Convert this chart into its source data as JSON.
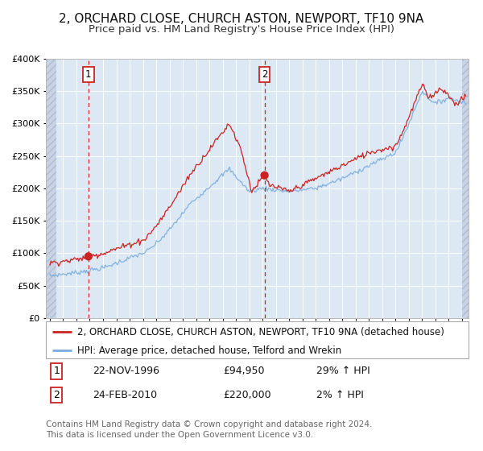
{
  "title1": "2, ORCHARD CLOSE, CHURCH ASTON, NEWPORT, TF10 9NA",
  "title2": "Price paid vs. HM Land Registry's House Price Index (HPI)",
  "legend_line1": "2, ORCHARD CLOSE, CHURCH ASTON, NEWPORT, TF10 9NA (detached house)",
  "legend_line2": "HPI: Average price, detached house, Telford and Wrekin",
  "sale1_label": "1",
  "sale2_label": "2",
  "sale1_date": "22-NOV-1996",
  "sale1_price": 94950,
  "sale1_price_str": "£94,950",
  "sale1_hpi": "29% ↑ HPI",
  "sale2_date": "24-FEB-2010",
  "sale2_price": 220000,
  "sale2_price_str": "£220,000",
  "sale2_hpi": "2% ↑ HPI",
  "footer": "Contains HM Land Registry data © Crown copyright and database right 2024.\nThis data is licensed under the Open Government Licence v3.0.",
  "sale1_year": 1996.9,
  "sale2_year": 2010.15,
  "ylim": [
    0,
    400000
  ],
  "xlim_start": 1993.7,
  "xlim_end": 2025.5,
  "red_color": "#cc2222",
  "blue_color": "#7aabdc",
  "bg_color": "#dce9f5",
  "grid_color": "#ffffff",
  "title_fontsize": 11,
  "subtitle_fontsize": 9.5,
  "tick_fontsize": 7.5,
  "legend_fontsize": 8.5,
  "table_fontsize": 9,
  "footer_fontsize": 7.5
}
